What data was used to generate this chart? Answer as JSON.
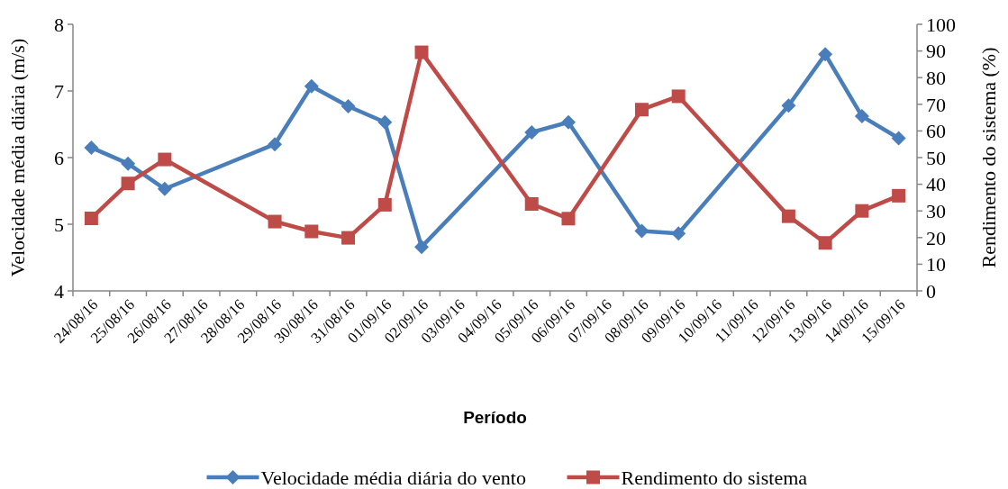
{
  "chart_data": {
    "type": "line",
    "xlabel": "Período",
    "ylabel": "Velocidade média diária (m/s)",
    "y2label": "Rendimento do sistema (%)",
    "categories": [
      "24/08/16",
      "25/08/16",
      "26/08/16",
      "27/08/16",
      "28/08/16",
      "29/08/16",
      "30/08/16",
      "31/08/16",
      "01/09/16",
      "02/09/16",
      "03/09/16",
      "04/09/16",
      "05/09/16",
      "06/09/16",
      "07/09/16",
      "08/09/16",
      "09/09/16",
      "10/09/16",
      "11/09/16",
      "12/09/16",
      "13/09/16",
      "14/09/16",
      "15/09/16"
    ],
    "series": [
      {
        "name": "Velocidade média diária do vento",
        "color": "#4a7ebb",
        "marker": "diamond",
        "values": [
          6.15,
          5.91,
          5.53,
          null,
          null,
          6.2,
          7.07,
          6.77,
          6.53,
          4.66,
          null,
          null,
          6.38,
          6.53,
          null,
          4.9,
          4.86,
          null,
          null,
          6.78,
          7.55,
          6.62,
          6.29
        ]
      },
      {
        "name": "Rendimento do sistema",
        "color": "#be4b48",
        "marker": "square",
        "axis": "y2",
        "values": [
          27.2,
          40.3,
          49.3,
          null,
          null,
          26,
          22.3,
          19.9,
          32.3,
          89.5,
          null,
          null,
          32.6,
          27.1,
          null,
          68,
          73,
          null,
          null,
          28,
          18,
          30,
          35.7
        ]
      }
    ],
    "ylim": [
      4,
      8
    ],
    "yticks": [
      4,
      5,
      6,
      7,
      8
    ],
    "y2lim": [
      0,
      100
    ],
    "y2ticks": [
      0,
      10,
      20,
      30,
      40,
      50,
      60,
      70,
      80,
      90,
      100
    ],
    "grid": false,
    "legend": "bottom"
  }
}
